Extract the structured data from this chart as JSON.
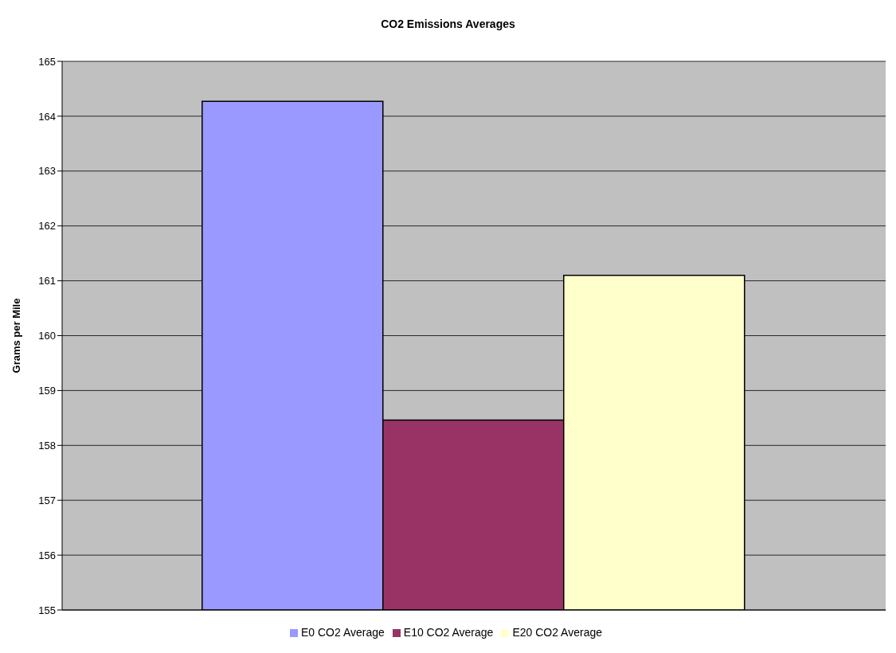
{
  "chart_data": {
    "type": "bar",
    "title": "CO2 Emissions Averages",
    "ylabel": "Grams per Mile",
    "categories": [
      null
    ],
    "series": [
      {
        "name": "E0 CO2 Average",
        "color": "#9999ff",
        "values": [
          164.27
        ]
      },
      {
        "name": "E10 CO2 Average",
        "color": "#993366",
        "values": [
          158.46
        ]
      },
      {
        "name": "E20 CO2 Average",
        "color": "#ffffcc",
        "values": [
          161.1
        ]
      }
    ],
    "ylim": [
      155,
      165
    ],
    "yticks": [
      155,
      156,
      157,
      158,
      159,
      160,
      161,
      162,
      163,
      164,
      165
    ],
    "grid": "y",
    "legend": "bottom"
  }
}
